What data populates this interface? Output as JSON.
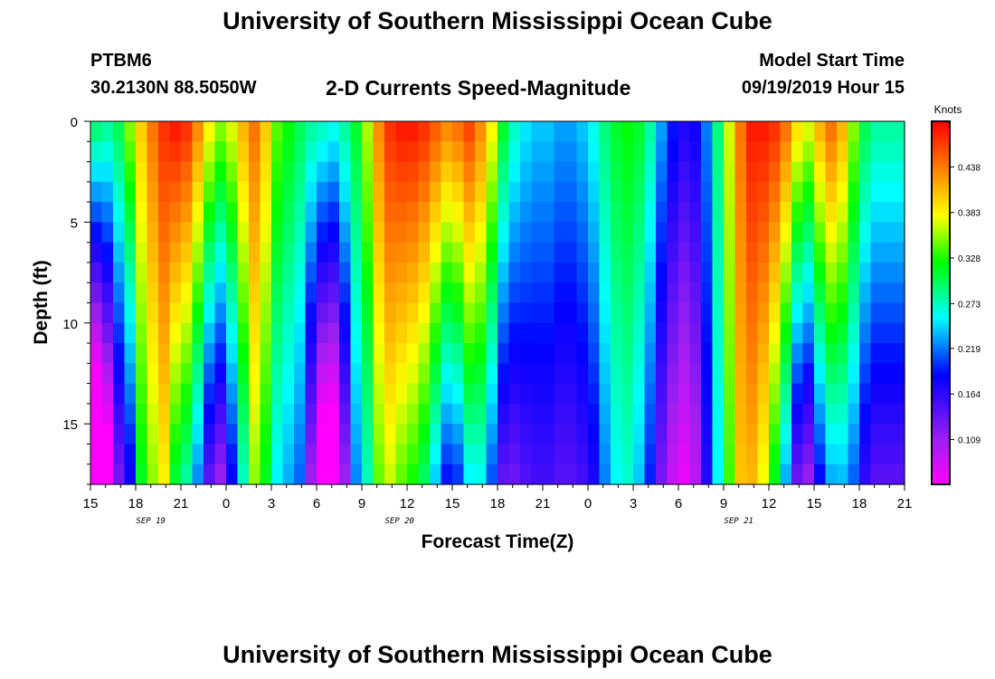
{
  "header": {
    "title": "University of Southern Mississippi Ocean Cube",
    "station_id": "PTBM6",
    "station_coords": "30.2130N 88.5050W",
    "subtitle": "2-D Currents Speed-Magnitude",
    "model_start_label": "Model Start Time",
    "model_start_value": "09/19/2019 Hour 15"
  },
  "footer": {
    "title": "University of Southern Mississippi Ocean Cube"
  },
  "chart_data": {
    "type": "heatmap",
    "title": "2-D Currents Speed-Magnitude",
    "xlabel": "Forecast Time(Z)",
    "ylabel": "Depth (ft)",
    "x_start_hour": 15,
    "x_end_hour": 69,
    "x_tick_labels": [
      "15",
      "18",
      "21",
      "0",
      "3",
      "6",
      "9",
      "12",
      "15",
      "18",
      "21",
      "0",
      "3",
      "6",
      "9",
      "12",
      "15",
      "18",
      "21"
    ],
    "date_labels": [
      {
        "hour": 19,
        "text": "SEP 19"
      },
      {
        "hour": 35.5,
        "text": "SEP 20"
      },
      {
        "hour": 58,
        "text": "SEP 21"
      }
    ],
    "y_range": [
      0,
      18
    ],
    "y_tick_labels": [
      "0",
      "5",
      "10",
      "15"
    ],
    "colorbar": {
      "unit": "Knots",
      "min": 0.055,
      "max": 0.493,
      "tick_values": [
        0.438,
        0.383,
        0.328,
        0.273,
        0.219,
        0.164,
        0.109
      ],
      "tick_labels": [
        "0.438",
        "0.383",
        "0.328",
        "0.273",
        "0.219",
        "0.164",
        "0.109"
      ]
    },
    "columns_per_hour": 2,
    "depth_rows": 18,
    "surface_speed_knots": [
      0.29,
      0.28,
      0.3,
      0.35,
      0.4,
      0.44,
      0.47,
      0.48,
      0.47,
      0.43,
      0.38,
      0.35,
      0.37,
      0.41,
      0.44,
      0.4,
      0.34,
      0.32,
      0.3,
      0.28,
      0.27,
      0.26,
      0.28,
      0.31,
      0.36,
      0.43,
      0.47,
      0.48,
      0.48,
      0.47,
      0.45,
      0.43,
      0.44,
      0.46,
      0.43,
      0.38,
      0.31,
      0.27,
      0.25,
      0.24,
      0.24,
      0.23,
      0.23,
      0.24,
      0.26,
      0.29,
      0.31,
      0.32,
      0.31,
      0.28,
      0.23,
      0.19,
      0.17,
      0.18,
      0.22,
      0.29,
      0.37,
      0.44,
      0.48,
      0.48,
      0.47,
      0.44,
      0.39,
      0.37,
      0.41,
      0.44,
      0.41,
      0.35,
      0.3,
      0.28,
      0.28,
      0.28
    ],
    "depth_decay_knots_per_row": [
      0.02,
      0.015,
      0.01,
      0.01,
      0.005,
      0.005,
      0.005,
      0.01,
      0.011,
      0.012,
      0.014,
      0.014,
      0.011,
      0.008,
      0.005,
      0.005,
      0.005,
      0.005,
      0.005,
      0.01,
      0.015,
      0.015,
      0.01,
      0.005,
      0.005,
      0.005,
      0.006,
      0.008,
      0.009,
      0.01,
      0.012,
      0.014,
      0.014,
      0.012,
      0.01,
      0.01,
      0.01,
      0.008,
      0.006,
      0.005,
      0.005,
      0.005,
      0.005,
      0.005,
      0.005,
      0.004,
      0.003,
      0.003,
      0.004,
      0.005,
      0.006,
      0.006,
      0.006,
      0.005,
      0.003,
      0.002,
      0.002,
      0.002,
      0.004,
      0.006,
      0.009,
      0.012,
      0.015,
      0.015,
      0.013,
      0.012,
      0.01,
      0.008,
      0.008,
      0.008,
      0.008,
      0.008
    ]
  }
}
